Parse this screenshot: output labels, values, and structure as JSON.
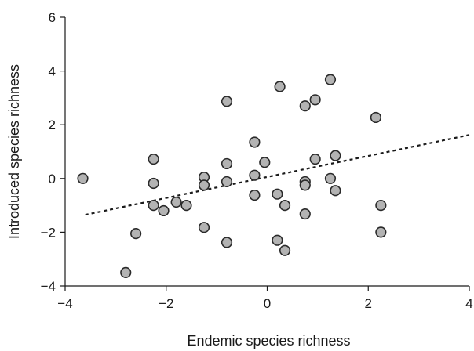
{
  "chart_data": {
    "type": "scatter",
    "title": "",
    "xlabel": "Endemic species richness",
    "ylabel": "Introduced species richness",
    "xlim": [
      -4,
      4
    ],
    "ylim": [
      -4,
      6
    ],
    "x_ticks": [
      -4,
      -2,
      0,
      2,
      4
    ],
    "y_ticks": [
      -4,
      -2,
      0,
      2,
      4,
      6
    ],
    "x_tick_labels": [
      "−4",
      "−2",
      "0",
      "2",
      "4"
    ],
    "y_tick_labels": [
      "−4",
      "−2",
      "0",
      "2",
      "4",
      "6"
    ],
    "grid": false,
    "legend": "none",
    "colors": {
      "point_fill": "#b3b3b3",
      "point_stroke": "#2a2a2a",
      "trend_line": "#1a1a1a",
      "axis": "#1a1a1a"
    },
    "points": [
      {
        "x": -3.65,
        "y": 0.0
      },
      {
        "x": -2.8,
        "y": -3.5
      },
      {
        "x": -2.6,
        "y": -2.05
      },
      {
        "x": -2.25,
        "y": 0.72
      },
      {
        "x": -2.25,
        "y": -0.18
      },
      {
        "x": -2.25,
        "y": -1.0
      },
      {
        "x": -2.05,
        "y": -1.2
      },
      {
        "x": -1.8,
        "y": -0.88
      },
      {
        "x": -1.6,
        "y": -1.0
      },
      {
        "x": -1.25,
        "y": 0.05
      },
      {
        "x": -1.25,
        "y": -0.25
      },
      {
        "x": -1.25,
        "y": -1.82
      },
      {
        "x": -0.8,
        "y": 2.87
      },
      {
        "x": -0.8,
        "y": 0.55
      },
      {
        "x": -0.8,
        "y": -0.12
      },
      {
        "x": -0.8,
        "y": -2.38
      },
      {
        "x": -0.25,
        "y": 1.35
      },
      {
        "x": -0.25,
        "y": 0.12
      },
      {
        "x": -0.25,
        "y": -0.62
      },
      {
        "x": -0.05,
        "y": 0.6
      },
      {
        "x": 0.2,
        "y": -0.58
      },
      {
        "x": 0.2,
        "y": -2.3
      },
      {
        "x": 0.25,
        "y": 3.42
      },
      {
        "x": 0.35,
        "y": -1.0
      },
      {
        "x": 0.35,
        "y": -2.68
      },
      {
        "x": 0.75,
        "y": 2.7
      },
      {
        "x": 0.75,
        "y": -0.12
      },
      {
        "x": 0.75,
        "y": -0.25
      },
      {
        "x": 0.75,
        "y": -1.32
      },
      {
        "x": 0.95,
        "y": 2.93
      },
      {
        "x": 0.95,
        "y": 0.72
      },
      {
        "x": 1.25,
        "y": 3.68
      },
      {
        "x": 1.25,
        "y": 0.0
      },
      {
        "x": 1.35,
        "y": 0.85
      },
      {
        "x": 1.35,
        "y": -0.45
      },
      {
        "x": 2.15,
        "y": 2.27
      },
      {
        "x": 2.25,
        "y": -1.0
      },
      {
        "x": 2.25,
        "y": -2.0
      }
    ],
    "trend": {
      "x": [
        -3.6,
        4.0
      ],
      "y": [
        -1.35,
        1.62
      ],
      "style": "dotted"
    }
  }
}
